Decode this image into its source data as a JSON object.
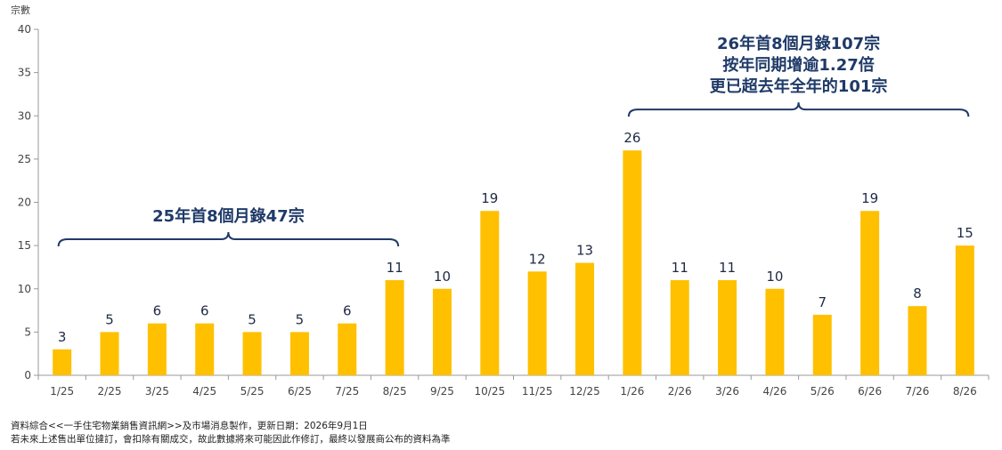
{
  "chart_data": {
    "type": "bar",
    "ylabel": "宗數",
    "ylim": [
      0,
      40
    ],
    "yticks": [
      0,
      5,
      10,
      15,
      20,
      25,
      30,
      35,
      40
    ],
    "grid": false,
    "bar_color": "#FFC000",
    "categories": [
      "1/25",
      "2/25",
      "3/25",
      "4/25",
      "5/25",
      "6/25",
      "7/25",
      "8/25",
      "9/25",
      "10/25",
      "11/25",
      "12/25",
      "1/26",
      "2/26",
      "3/26",
      "4/26",
      "5/26",
      "6/26",
      "7/26",
      "8/26"
    ],
    "values": [
      3,
      5,
      6,
      6,
      5,
      5,
      6,
      11,
      10,
      19,
      12,
      13,
      26,
      11,
      11,
      10,
      7,
      19,
      8,
      15
    ],
    "annotations": [
      {
        "lines": [
          "25年首8個月錄47宗"
        ],
        "from": 0,
        "to": 7
      },
      {
        "lines": [
          "26年首8個月錄107宗",
          "按年同期增逾1.27倍",
          "更已超去年全年的101宗"
        ],
        "from": 12,
        "to": 19
      }
    ]
  },
  "footnotes": [
    "資料綜合<<一手住宅物業銷售資訊網>>及市場消息製作，更新日期：2026年9月1日",
    "若未來上述售出單位撻訂，會扣除有關成交，故此數據將來可能因此作修訂，最終以發展商公布的資料為準"
  ]
}
